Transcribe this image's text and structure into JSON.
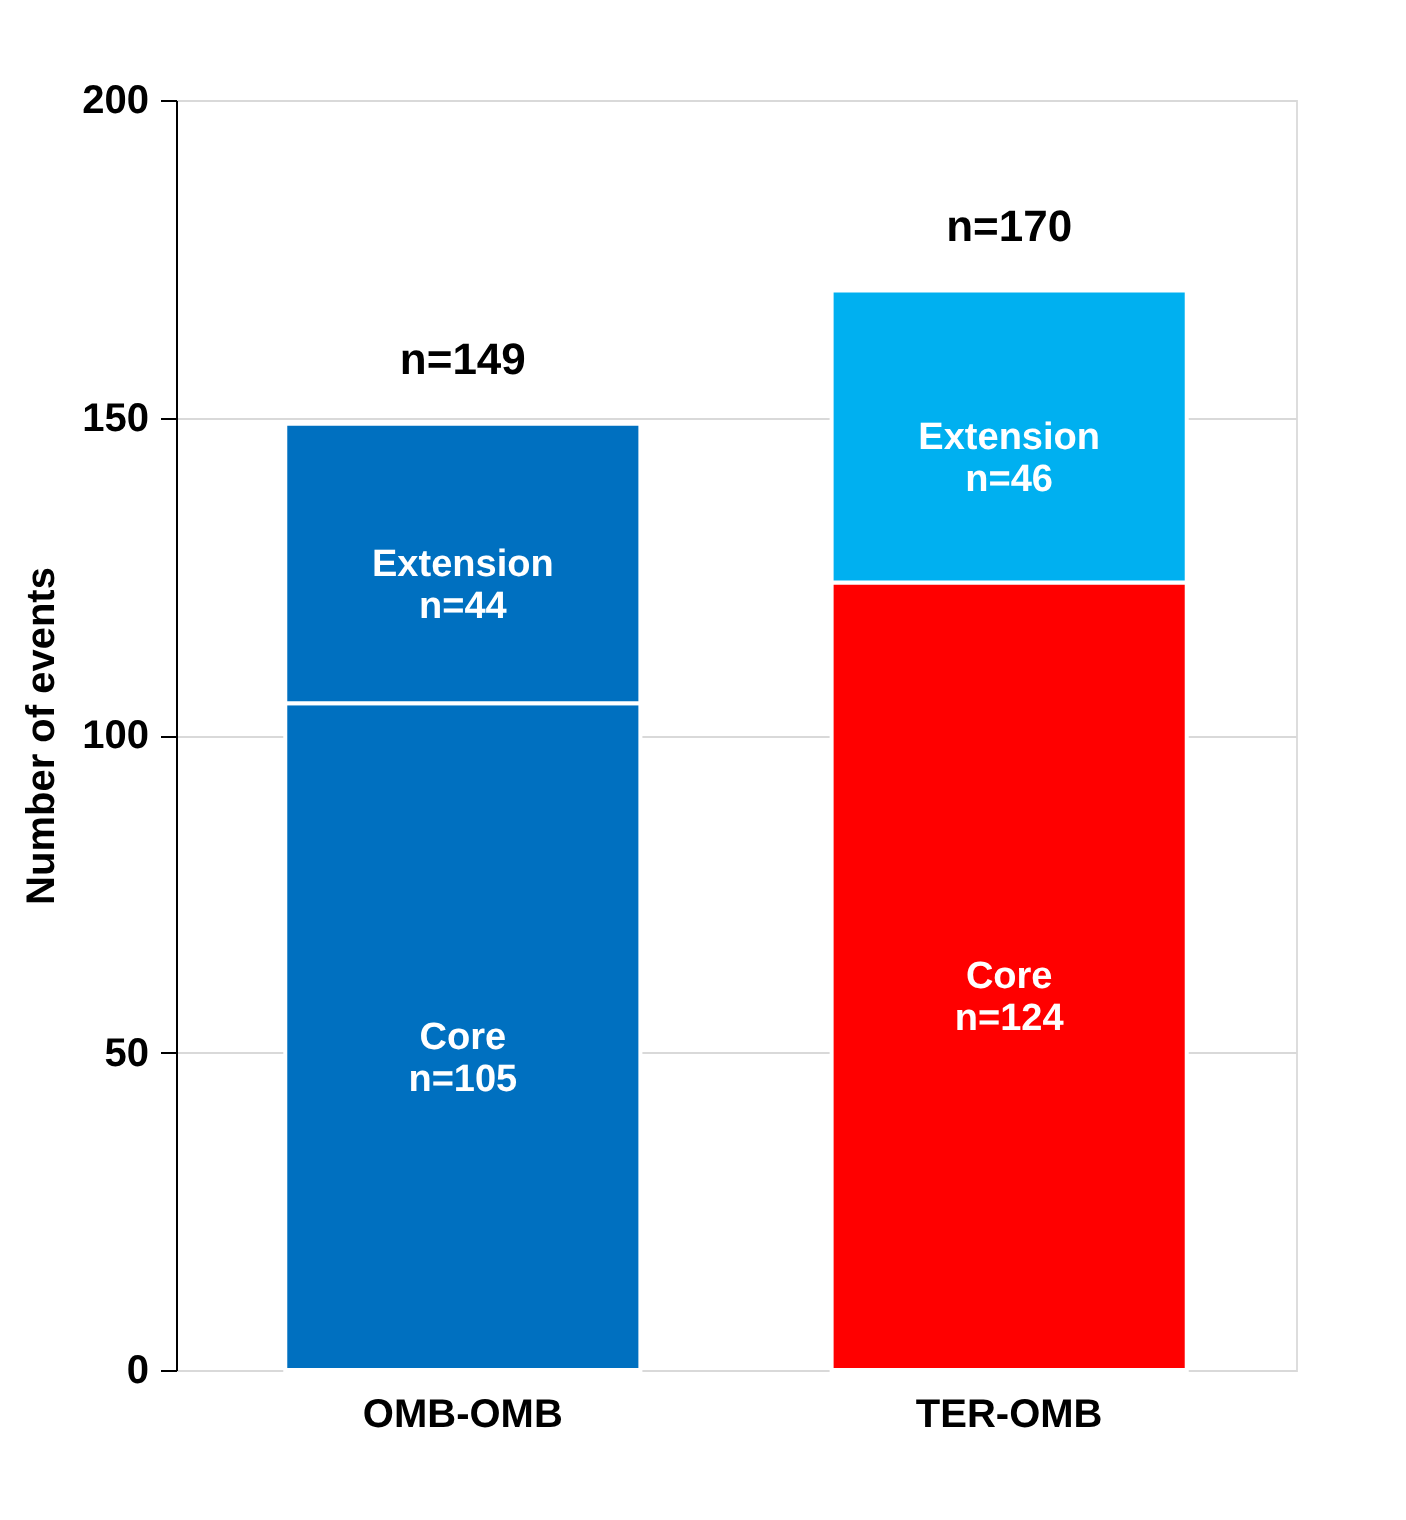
{
  "chart_data": {
    "type": "bar",
    "stacked": true,
    "ylabel": "Number of events",
    "categories": [
      "OMB-OMB",
      "TER-OMB"
    ],
    "series": [
      {
        "name": "Core",
        "colors": [
          "#0070c0",
          "#ff0000"
        ],
        "values": [
          105,
          124
        ],
        "value_labels": [
          "n=105",
          "n=124"
        ]
      },
      {
        "name": "Extension",
        "colors": [
          "#0070c0",
          "#00b0f0"
        ],
        "values": [
          44,
          46
        ],
        "value_labels": [
          "n=44",
          "n=46"
        ]
      }
    ],
    "totals": [
      "n=149",
      "n=170"
    ],
    "ylim": [
      0,
      200
    ],
    "yticks": [
      0,
      50,
      100,
      150,
      200
    ],
    "grid": "y"
  }
}
